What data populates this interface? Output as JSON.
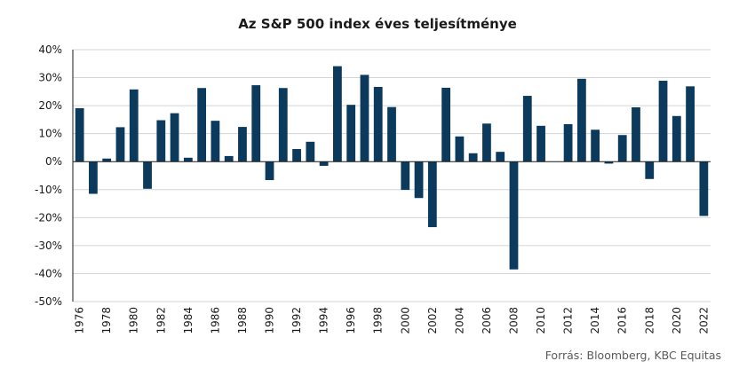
{
  "chart_data": {
    "type": "bar",
    "title": "Az S&P 500 index éves teljesítménye",
    "source": "Forrás: Bloomberg, KBC Equitas",
    "xlabel": "",
    "ylabel": "",
    "ylim": [
      -50,
      40
    ],
    "yticks": [
      40,
      30,
      20,
      10,
      0,
      -10,
      -20,
      -30,
      -40,
      -50
    ],
    "ytick_suffix": "%",
    "grid": true,
    "bar_color": "#0b3a5c",
    "categories": [
      "1976",
      "1977",
      "1978",
      "1979",
      "1980",
      "1981",
      "1982",
      "1983",
      "1984",
      "1985",
      "1986",
      "1987",
      "1988",
      "1989",
      "1990",
      "1991",
      "1992",
      "1993",
      "1994",
      "1995",
      "1996",
      "1997",
      "1998",
      "1999",
      "2000",
      "2001",
      "2002",
      "2003",
      "2004",
      "2005",
      "2006",
      "2007",
      "2008",
      "2009",
      "2010",
      "2011",
      "2012",
      "2013",
      "2014",
      "2015",
      "2016",
      "2017",
      "2018",
      "2019",
      "2020",
      "2021",
      "2022"
    ],
    "xtick_labels": [
      "1976",
      "1978",
      "1980",
      "1982",
      "1984",
      "1986",
      "1988",
      "1990",
      "1992",
      "1994",
      "1996",
      "1998",
      "2000",
      "2002",
      "2004",
      "2006",
      "2008",
      "2010",
      "2012",
      "2014",
      "2016",
      "2018",
      "2020",
      "2022"
    ],
    "values": [
      19.1,
      -11.5,
      1.1,
      12.3,
      25.8,
      -9.7,
      14.8,
      17.3,
      1.4,
      26.3,
      14.6,
      2.0,
      12.4,
      27.3,
      -6.6,
      26.3,
      4.5,
      7.1,
      -1.5,
      34.1,
      20.3,
      31.0,
      26.7,
      19.5,
      -10.1,
      -13.0,
      -23.4,
      26.4,
      9.0,
      3.0,
      13.6,
      3.5,
      -38.5,
      23.5,
      12.8,
      0.0,
      13.4,
      29.6,
      11.4,
      -0.7,
      9.5,
      19.4,
      -6.2,
      28.9,
      16.3,
      26.9,
      -19.4
    ]
  }
}
